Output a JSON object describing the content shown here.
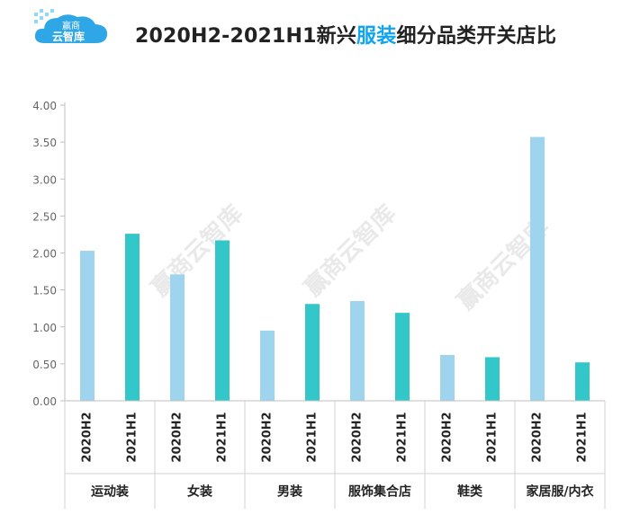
{
  "header": {
    "logo_line1": "赢商",
    "logo_line2": "云智库",
    "title_prefix": "2020H2-2021H1新兴",
    "title_highlight": "服装",
    "title_suffix": "细分品类开关店比",
    "watermark": "赢商云智库"
  },
  "colors": {
    "series_2020H2": "#9fd4ef",
    "series_2021H1": "#33c7c9",
    "title_highlight": "#12a4ee"
  },
  "chart_data": {
    "type": "bar",
    "title": "2020H2-2021H1新兴服装细分品类开关店比",
    "ylim": [
      0,
      4
    ],
    "yticks": [
      "0.00",
      "0.50",
      "1.00",
      "1.50",
      "2.00",
      "2.50",
      "3.00",
      "3.50",
      "4.00"
    ],
    "grid": false,
    "categories": [
      "运动装",
      "女装",
      "男装",
      "服饰集合店",
      "鞋类",
      "家居服/内衣"
    ],
    "series": [
      {
        "name": "2020H2",
        "values": [
          2.03,
          1.71,
          0.95,
          1.35,
          0.62,
          3.57
        ]
      },
      {
        "name": "2021H1",
        "values": [
          2.26,
          2.17,
          1.31,
          1.19,
          0.59,
          0.52
        ]
      }
    ]
  }
}
